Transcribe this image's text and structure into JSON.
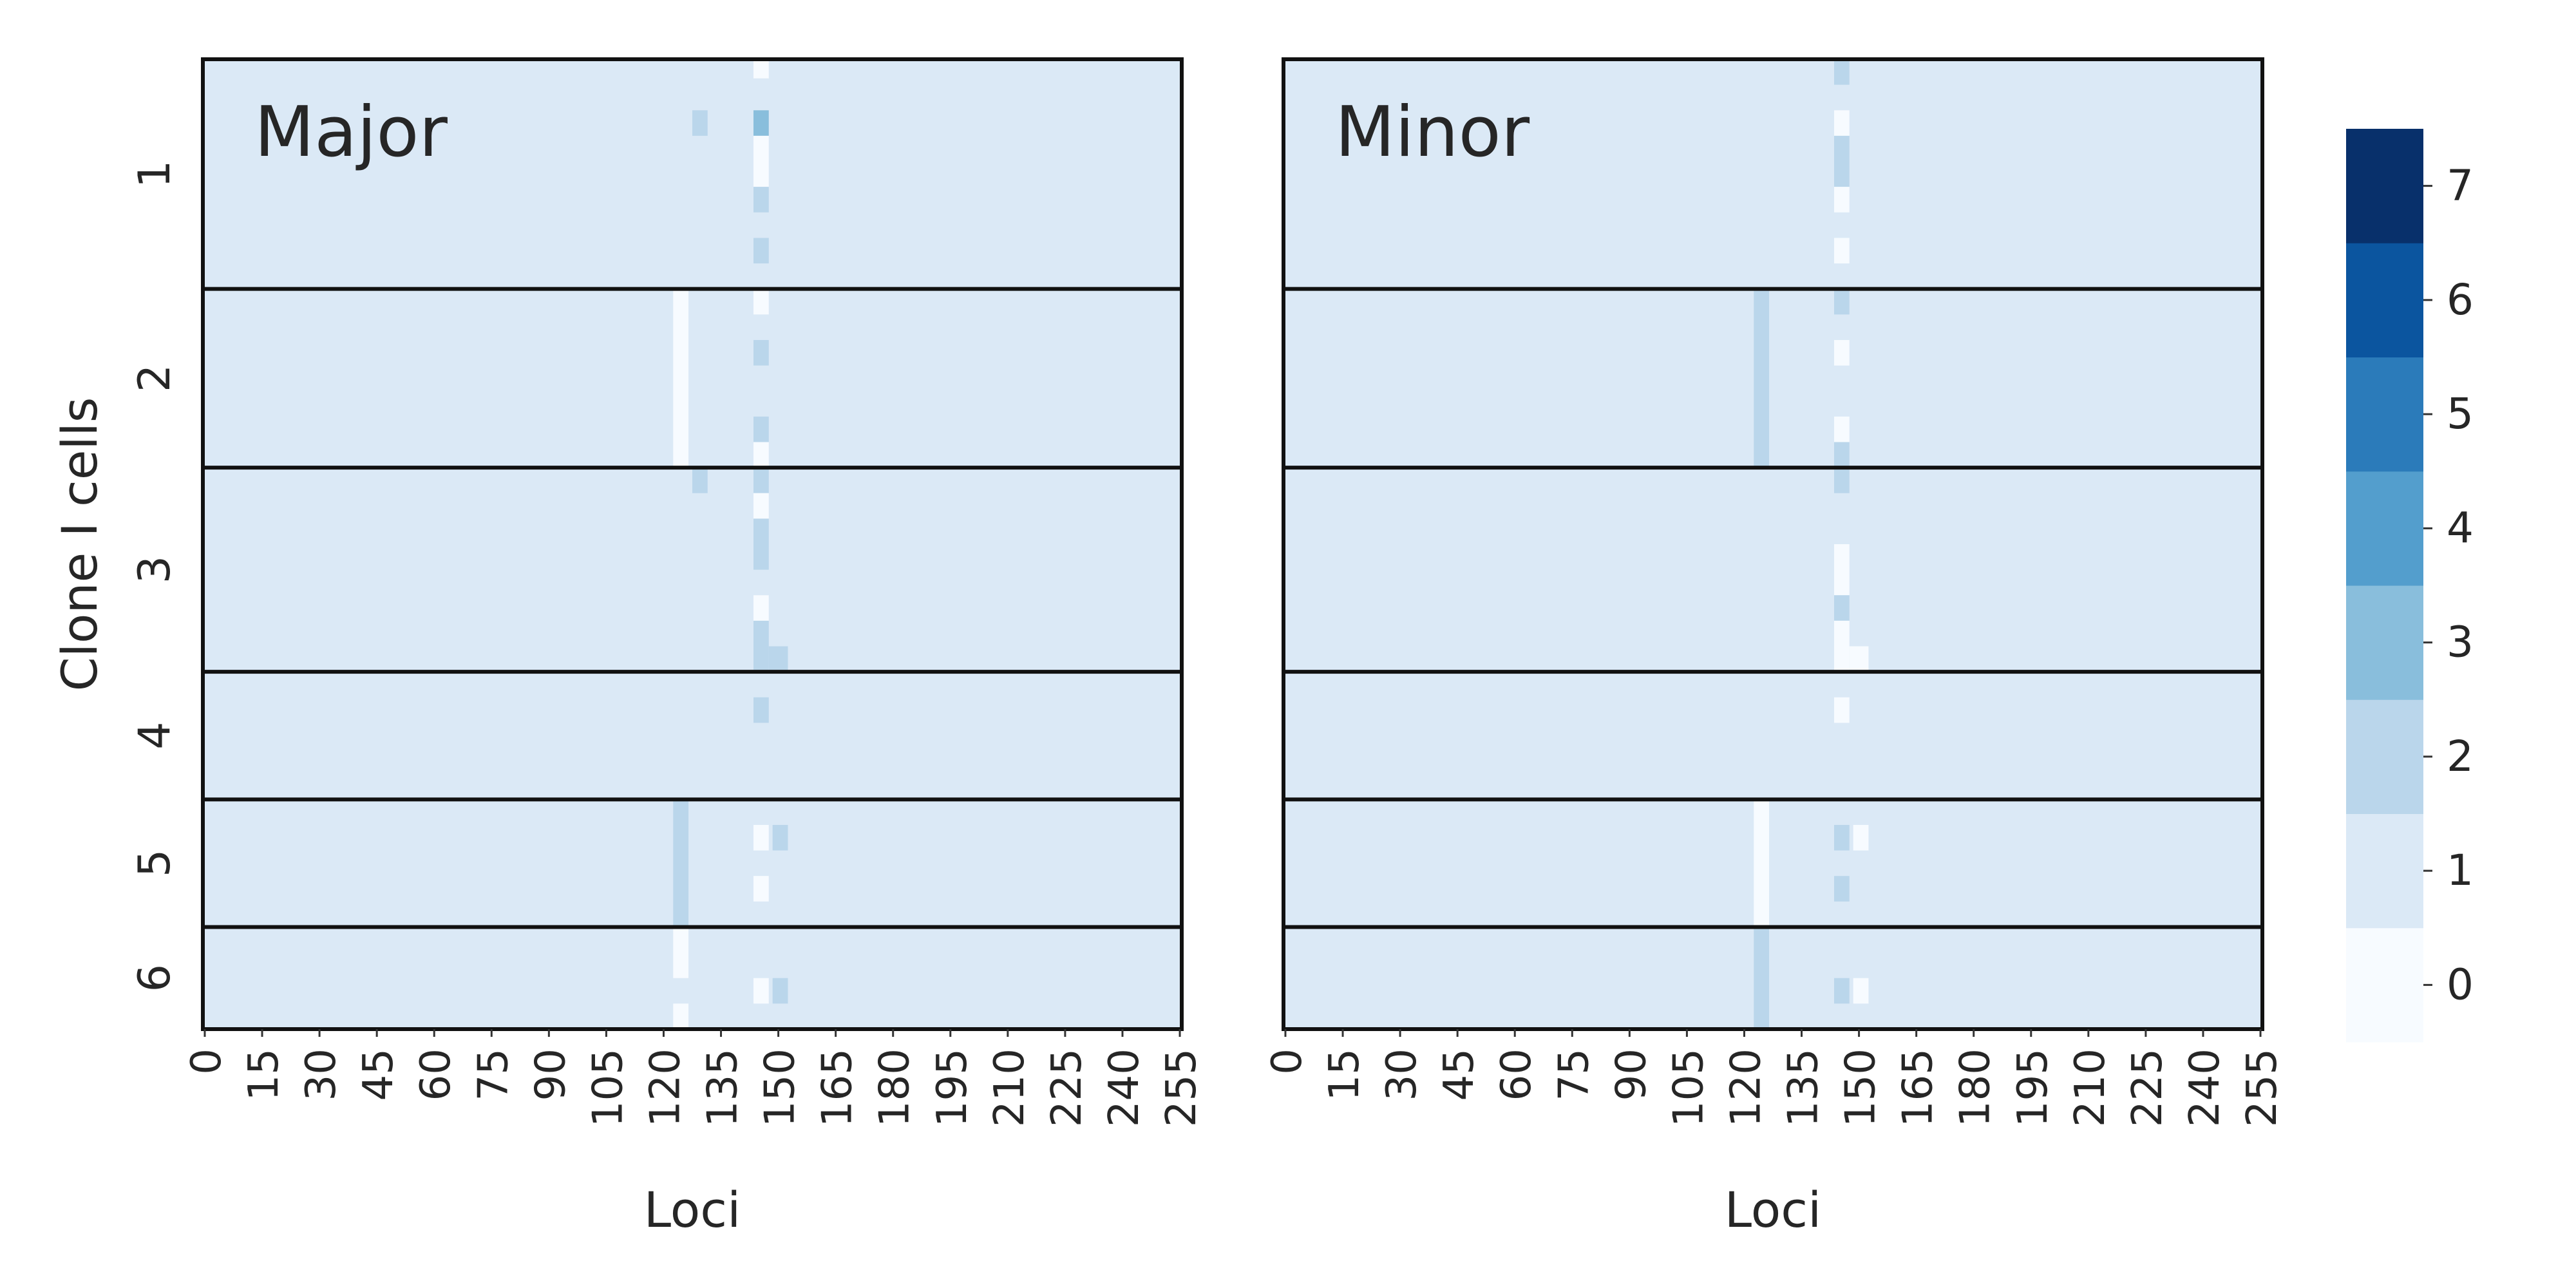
{
  "chart_data": {
    "type": "heatmap",
    "ylabel": "Clone I cells",
    "row_groups": [
      "1",
      "2",
      "3",
      "4",
      "5",
      "6"
    ],
    "group_row_counts": [
      36,
      28,
      32,
      20,
      20,
      16
    ],
    "num_loci": 256,
    "xticks": [
      0,
      15,
      30,
      45,
      60,
      75,
      90,
      105,
      120,
      135,
      150,
      165,
      180,
      195,
      210,
      225,
      240,
      255
    ],
    "default_value": 1,
    "panels": [
      {
        "title": "Major",
        "xlabel": "Loci",
        "cells": [
          {
            "x": [
              144,
              148
            ],
            "y": [
              0,
              3
            ],
            "v": 0
          },
          {
            "x": [
              128,
              132
            ],
            "y": [
              8,
              12
            ],
            "v": 2
          },
          {
            "x": [
              144,
              148
            ],
            "y": [
              8,
              12
            ],
            "v": 3
          },
          {
            "x": [
              144,
              148
            ],
            "y": [
              12,
              20
            ],
            "v": 0
          },
          {
            "x": [
              144,
              148
            ],
            "y": [
              20,
              24
            ],
            "v": 2
          },
          {
            "x": [
              144,
              148
            ],
            "y": [
              28,
              32
            ],
            "v": 2
          },
          {
            "x": [
              123,
              127
            ],
            "y": [
              36,
              64
            ],
            "v": 0
          },
          {
            "x": [
              144,
              148
            ],
            "y": [
              36,
              40
            ],
            "v": 0
          },
          {
            "x": [
              144,
              148
            ],
            "y": [
              44,
              48
            ],
            "v": 2
          },
          {
            "x": [
              144,
              148
            ],
            "y": [
              56,
              60
            ],
            "v": 2
          },
          {
            "x": [
              144,
              148
            ],
            "y": [
              60,
              64
            ],
            "v": 0
          },
          {
            "x": [
              128,
              132
            ],
            "y": [
              64,
              68
            ],
            "v": 2
          },
          {
            "x": [
              144,
              148
            ],
            "y": [
              64,
              68
            ],
            "v": 2
          },
          {
            "x": [
              144,
              148
            ],
            "y": [
              68,
              72
            ],
            "v": 0
          },
          {
            "x": [
              144,
              148
            ],
            "y": [
              72,
              80
            ],
            "v": 2
          },
          {
            "x": [
              144,
              148
            ],
            "y": [
              84,
              88
            ],
            "v": 0
          },
          {
            "x": [
              144,
              148
            ],
            "y": [
              88,
              96
            ],
            "v": 2
          },
          {
            "x": [
              148,
              153
            ],
            "y": [
              92,
              96
            ],
            "v": 2
          },
          {
            "x": [
              144,
              148
            ],
            "y": [
              100,
              104
            ],
            "v": 2
          },
          {
            "x": [
              123,
              127
            ],
            "y": [
              116,
              136
            ],
            "v": 2
          },
          {
            "x": [
              144,
              148
            ],
            "y": [
              120,
              124
            ],
            "v": 0
          },
          {
            "x": [
              149,
              153
            ],
            "y": [
              120,
              124
            ],
            "v": 2
          },
          {
            "x": [
              144,
              148
            ],
            "y": [
              128,
              132
            ],
            "v": 0
          },
          {
            "x": [
              123,
              127
            ],
            "y": [
              136,
              144
            ],
            "v": 0
          },
          {
            "x": [
              123,
              127
            ],
            "y": [
              148,
              152
            ],
            "v": 0
          },
          {
            "x": [
              144,
              148
            ],
            "y": [
              144,
              148
            ],
            "v": 0
          },
          {
            "x": [
              149,
              153
            ],
            "y": [
              144,
              148
            ],
            "v": 2
          }
        ]
      },
      {
        "title": "Minor",
        "xlabel": "Loci",
        "cells": [
          {
            "x": [
              144,
              148
            ],
            "y": [
              0,
              4
            ],
            "v": 2
          },
          {
            "x": [
              144,
              148
            ],
            "y": [
              8,
              12
            ],
            "v": 0
          },
          {
            "x": [
              144,
              148
            ],
            "y": [
              12,
              20
            ],
            "v": 2
          },
          {
            "x": [
              144,
              148
            ],
            "y": [
              20,
              24
            ],
            "v": 0
          },
          {
            "x": [
              144,
              148
            ],
            "y": [
              28,
              32
            ],
            "v": 0
          },
          {
            "x": [
              123,
              127
            ],
            "y": [
              36,
              64
            ],
            "v": 2
          },
          {
            "x": [
              144,
              148
            ],
            "y": [
              36,
              40
            ],
            "v": 2
          },
          {
            "x": [
              144,
              148
            ],
            "y": [
              44,
              48
            ],
            "v": 0
          },
          {
            "x": [
              144,
              148
            ],
            "y": [
              56,
              60
            ],
            "v": 0
          },
          {
            "x": [
              144,
              148
            ],
            "y": [
              60,
              68
            ],
            "v": 2
          },
          {
            "x": [
              144,
              148
            ],
            "y": [
              76,
              84
            ],
            "v": 0
          },
          {
            "x": [
              144,
              148
            ],
            "y": [
              84,
              88
            ],
            "v": 2
          },
          {
            "x": [
              144,
              148
            ],
            "y": [
              88,
              96
            ],
            "v": 0
          },
          {
            "x": [
              148,
              153
            ],
            "y": [
              92,
              96
            ],
            "v": 0
          },
          {
            "x": [
              144,
              148
            ],
            "y": [
              100,
              104
            ],
            "v": 0
          },
          {
            "x": [
              123,
              127
            ],
            "y": [
              116,
              136
            ],
            "v": 0
          },
          {
            "x": [
              144,
              148
            ],
            "y": [
              120,
              124
            ],
            "v": 2
          },
          {
            "x": [
              149,
              153
            ],
            "y": [
              120,
              124
            ],
            "v": 0
          },
          {
            "x": [
              144,
              148
            ],
            "y": [
              128,
              132
            ],
            "v": 2
          },
          {
            "x": [
              123,
              127
            ],
            "y": [
              136,
              152
            ],
            "v": 2
          },
          {
            "x": [
              144,
              148
            ],
            "y": [
              144,
              148
            ],
            "v": 2
          },
          {
            "x": [
              149,
              153
            ],
            "y": [
              144,
              148
            ],
            "v": 0
          }
        ]
      }
    ],
    "colorbar": {
      "min": -0.5,
      "max": 7.5,
      "ticks": [
        0,
        1,
        2,
        3,
        4,
        5,
        6,
        7
      ],
      "colors": [
        "#f7fbff",
        "#dbe9f6",
        "#bad6eb",
        "#89bedc",
        "#539ecd",
        "#2b7bba",
        "#0b559f",
        "#08306b"
      ]
    },
    "grid": false,
    "legend": "colorbar-right"
  }
}
